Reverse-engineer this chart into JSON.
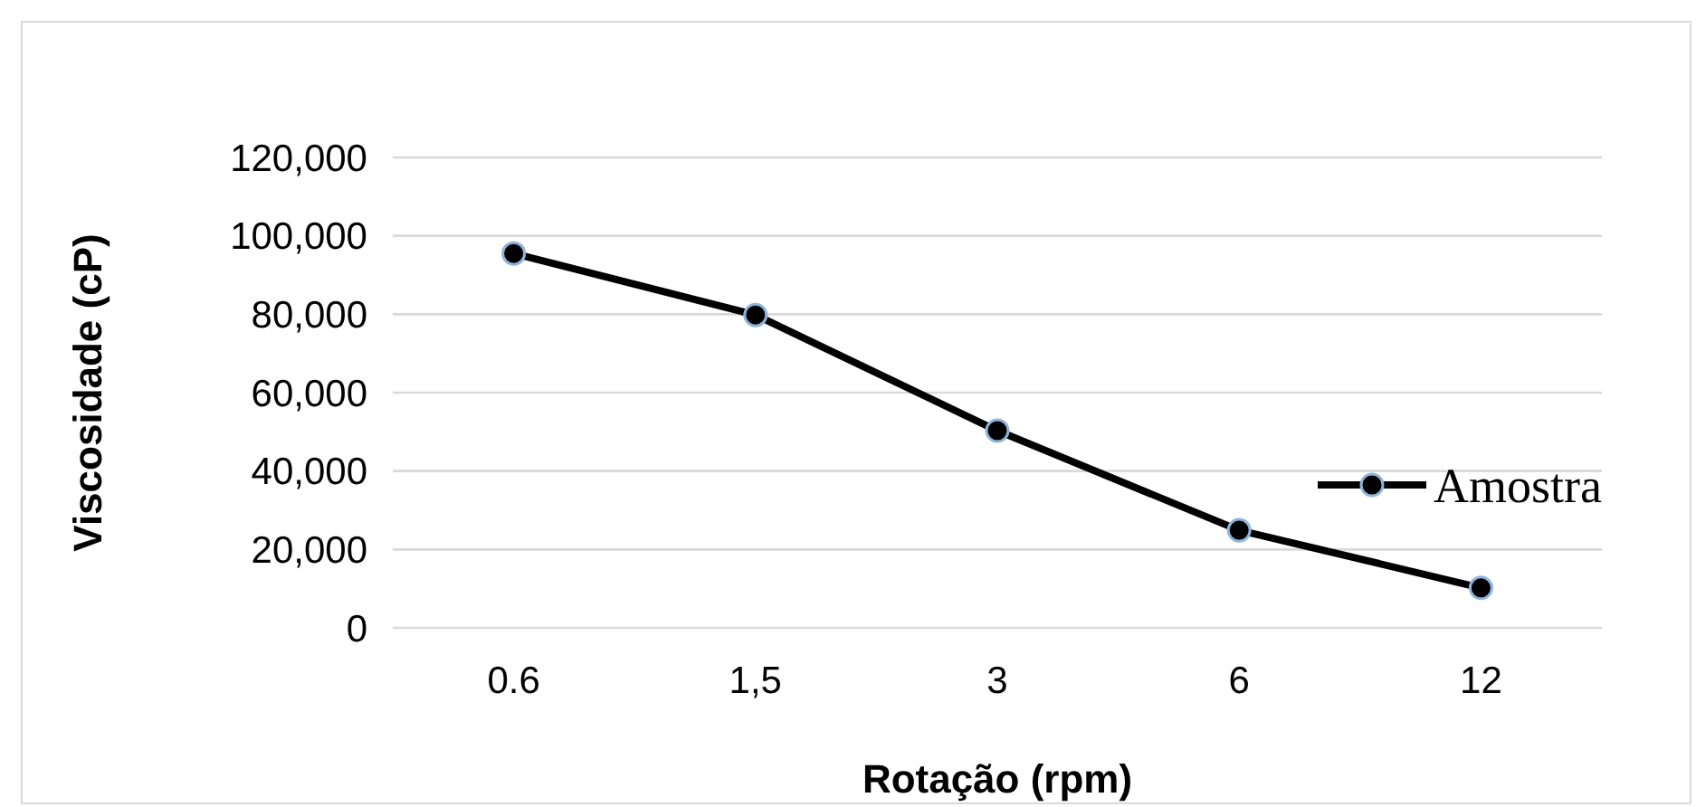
{
  "chart_data": {
    "type": "line",
    "xlabel": "Rotação (rpm)",
    "ylabel": "Viscosidade (cP)",
    "categories": [
      "0.6",
      "1,5",
      "3",
      "6",
      "12"
    ],
    "series": [
      {
        "name": "Amostra",
        "color": "#000000",
        "values": [
          95500,
          79800,
          50300,
          24900,
          10200
        ]
      }
    ],
    "ylim": [
      0,
      120000
    ],
    "yticks": [
      {
        "value": 0,
        "label": "0"
      },
      {
        "value": 20000,
        "label": "20,000"
      },
      {
        "value": 40000,
        "label": "40,000"
      },
      {
        "value": 60000,
        "label": "60,000"
      },
      {
        "value": 80000,
        "label": "80,000"
      },
      {
        "value": 100000,
        "label": "100,000"
      },
      {
        "value": 120000,
        "label": "120,000"
      }
    ],
    "grid": "y",
    "legend": "right",
    "marker": "circle",
    "line_style": "solid"
  }
}
